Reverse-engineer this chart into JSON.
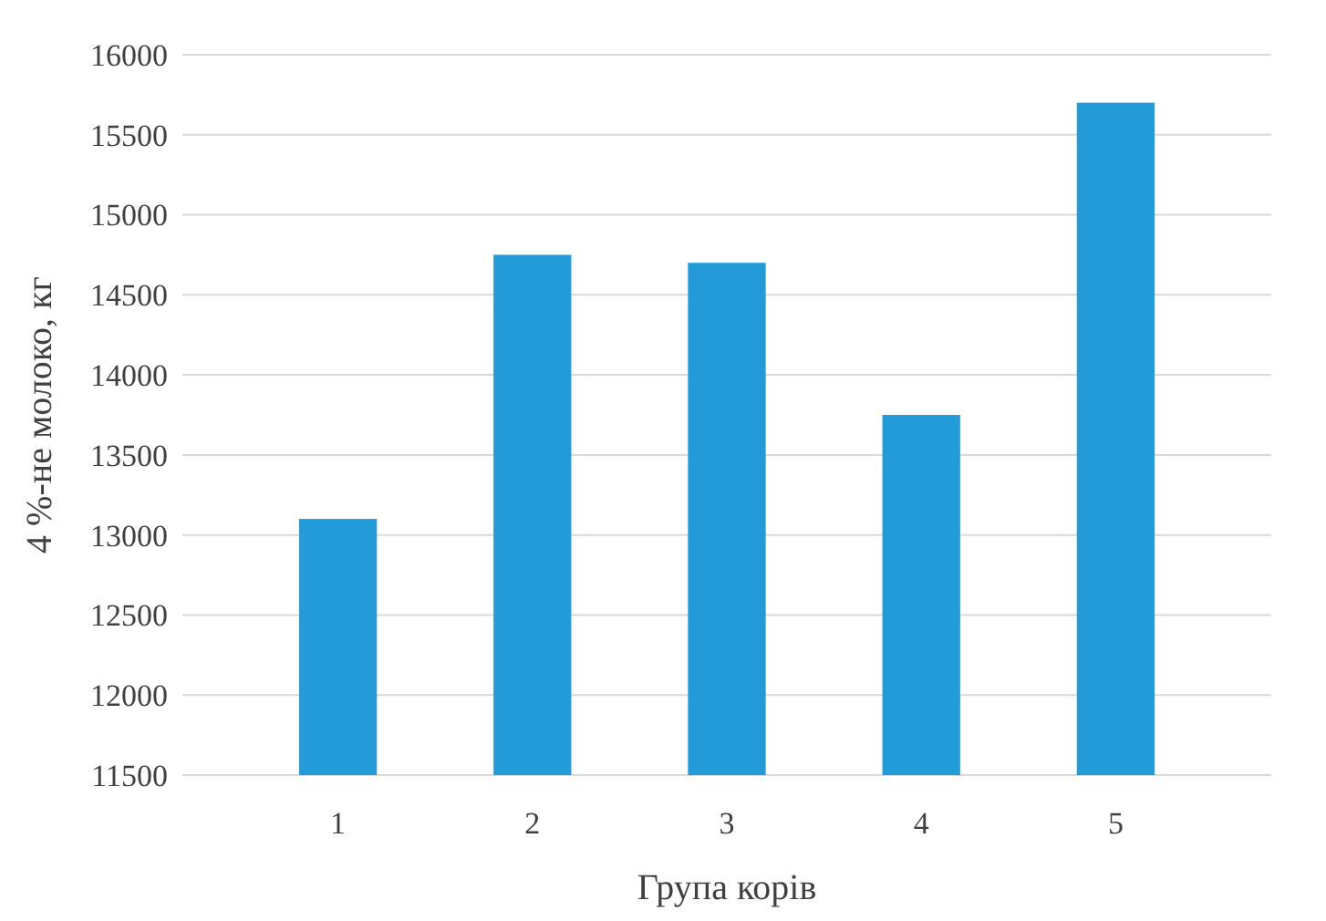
{
  "chart_data": {
    "type": "bar",
    "xlabel": "Група корів",
    "ylabel": "4 %-не молоко, кг",
    "categories": [
      "1",
      "2",
      "3",
      "4",
      "5"
    ],
    "values": [
      13100,
      14750,
      14700,
      13750,
      15700
    ],
    "color": "#239bd9",
    "ylim": [
      11500,
      16000
    ],
    "yticks": [
      11500,
      12000,
      12500,
      13000,
      13500,
      14000,
      14500,
      15000,
      15500,
      16000
    ],
    "grid": "y"
  }
}
